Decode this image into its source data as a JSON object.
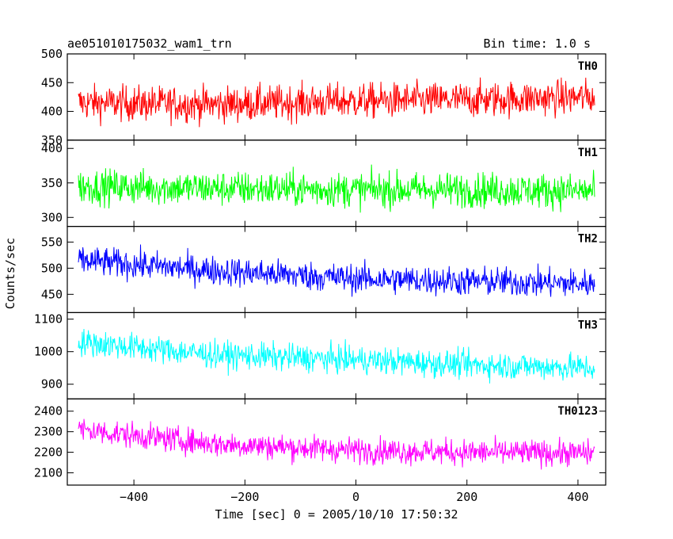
{
  "header": {
    "title": "ae051010175032_wam1_trn",
    "bin_time": "Bin time: 1.0 s"
  },
  "chart_data": {
    "type": "line",
    "title": "ae051010175032_wam1_trn",
    "subtitle": "Bin time: 1.0 s",
    "xlabel": "Time [sec] 0 = 2005/10/10 17:50:32",
    "ylabel": "Counts/sec",
    "xlim": [
      -520,
      450
    ],
    "x_range_data": [
      -500,
      430
    ],
    "xticks": [
      -400,
      -200,
      0,
      200,
      400
    ],
    "grid": false,
    "panels": [
      {
        "name": "TH0",
        "color": "#ff0000",
        "ylim": [
          350,
          500
        ],
        "yticks": [
          350,
          400,
          450,
          500
        ],
        "trend": [
          [
            -500,
            415
          ],
          [
            -250,
            412
          ],
          [
            0,
            418
          ],
          [
            200,
            420
          ],
          [
            430,
            425
          ]
        ],
        "noise": 22
      },
      {
        "name": "TH1",
        "color": "#00ff00",
        "ylim": [
          287,
          412
        ],
        "yticks": [
          300,
          350,
          400
        ],
        "trend": [
          [
            -500,
            345
          ],
          [
            -250,
            342
          ],
          [
            0,
            340
          ],
          [
            200,
            340
          ],
          [
            430,
            338
          ]
        ],
        "noise": 18
      },
      {
        "name": "TH2",
        "color": "#0000ff",
        "ylim": [
          415,
          580
        ],
        "yticks": [
          450,
          500,
          550
        ],
        "trend": [
          [
            -500,
            515
          ],
          [
            -250,
            495
          ],
          [
            0,
            480
          ],
          [
            200,
            475
          ],
          [
            430,
            470
          ]
        ],
        "noise": 20
      },
      {
        "name": "TH3",
        "color": "#00ffff",
        "ylim": [
          855,
          1120
        ],
        "yticks": [
          900,
          1000,
          1100
        ],
        "trend": [
          [
            -500,
            1030
          ],
          [
            -250,
            990
          ],
          [
            0,
            975
          ],
          [
            200,
            960
          ],
          [
            430,
            950
          ]
        ],
        "noise": 30
      },
      {
        "name": "TH0123",
        "color": "#ff00ff",
        "ylim": [
          2040,
          2460
        ],
        "yticks": [
          2100,
          2200,
          2300,
          2400
        ],
        "trend": [
          [
            -500,
            2310
          ],
          [
            -250,
            2240
          ],
          [
            0,
            2210
          ],
          [
            200,
            2200
          ],
          [
            430,
            2195
          ]
        ],
        "noise": 45
      }
    ]
  }
}
